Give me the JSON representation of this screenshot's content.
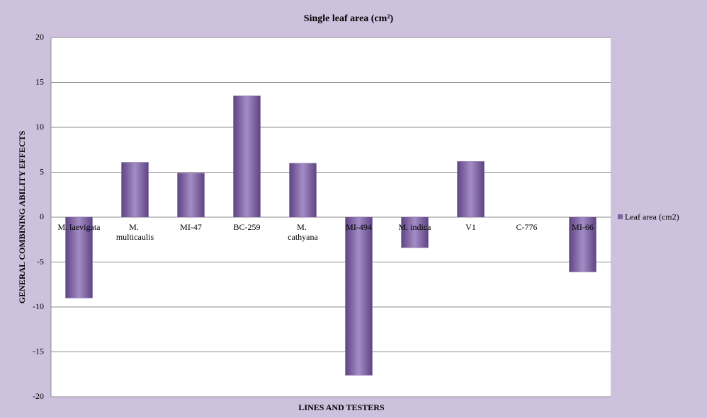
{
  "chart_data": {
    "type": "bar",
    "title": "Single leaf area (cm²)",
    "x_label": "LINES AND TESTERS",
    "y_label": "GENERAL COMBINING ABILITY EFFECTS",
    "categories": [
      "M. laevigata",
      "M. multicaulis",
      "MI-47",
      "BC-259",
      "M. cathyana",
      "MI-494",
      "M. indica",
      "V1",
      "C-776",
      "MI-66"
    ],
    "series": [
      {
        "name": "Leaf area (cm2)",
        "color": "#8064a2",
        "values": [
          -9,
          6.1,
          4.9,
          13.5,
          6.0,
          -17.6,
          -3.4,
          6.2,
          0,
          -6.1
        ]
      }
    ],
    "ylim": [
      -20,
      20
    ],
    "yticks": [
      -20,
      -15,
      -10,
      -5,
      0,
      5,
      10,
      15,
      20
    ],
    "grid": true,
    "legend": "right"
  }
}
